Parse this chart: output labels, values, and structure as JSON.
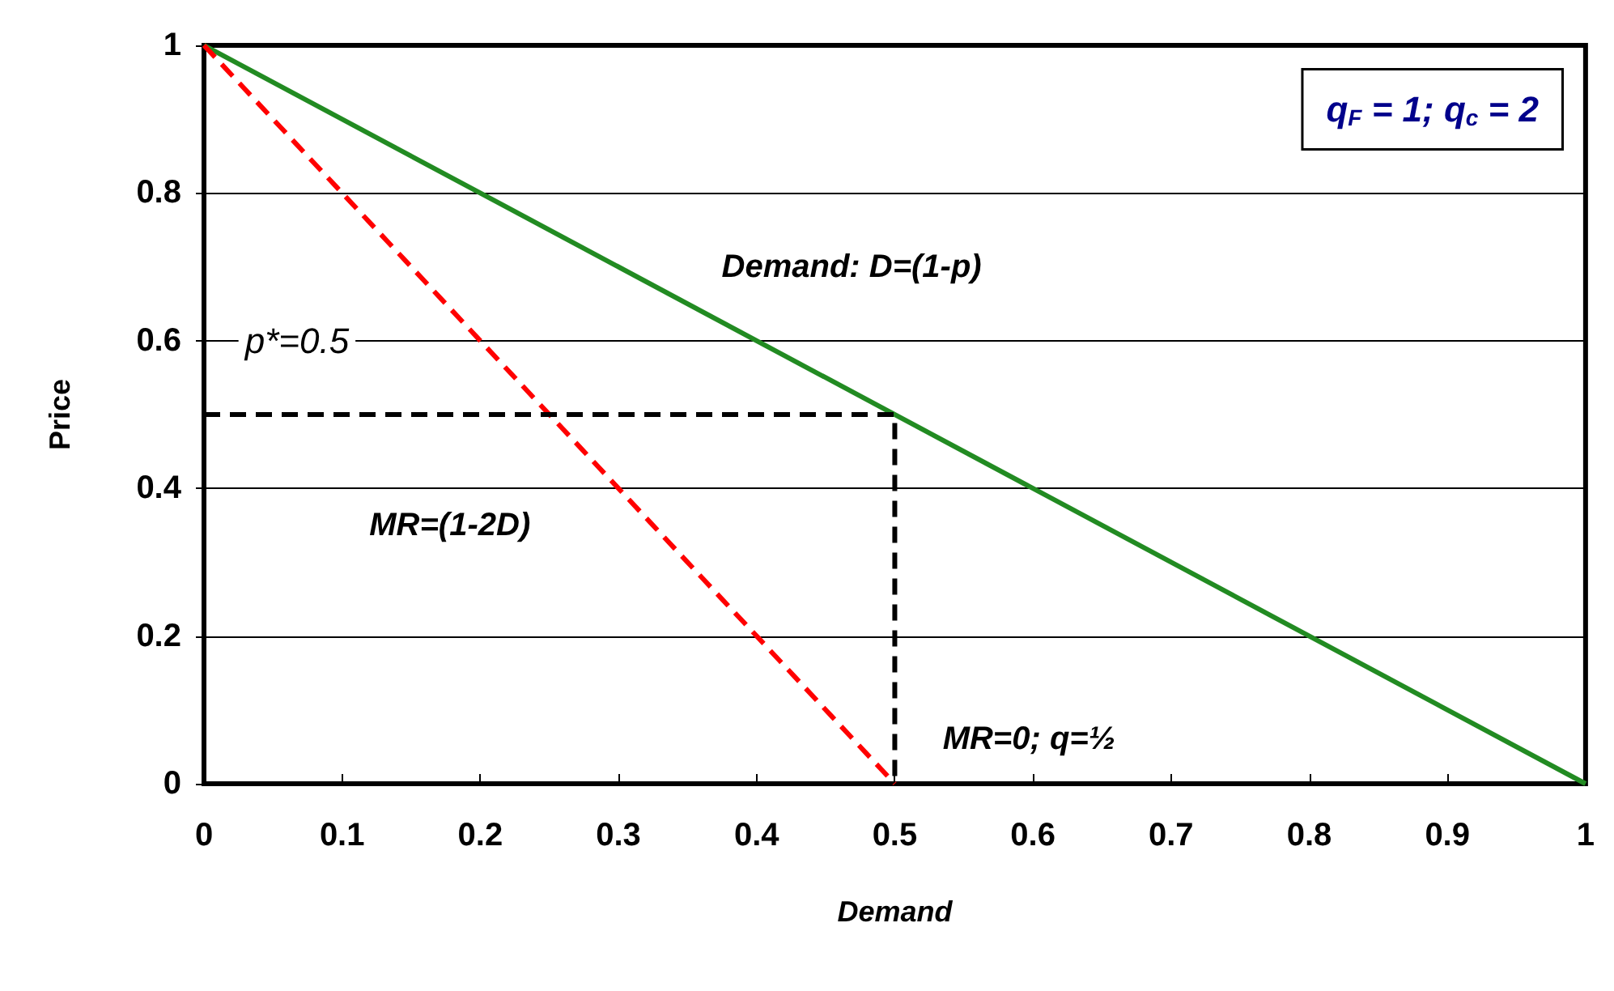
{
  "chart_data": {
    "type": "line",
    "xlabel": "Demand",
    "ylabel": "Price",
    "xlim": [
      0,
      1
    ],
    "ylim": [
      0,
      1
    ],
    "xticks": [
      0,
      0.1,
      0.2,
      0.3,
      0.4,
      0.5,
      0.6,
      0.7,
      0.8,
      0.9,
      1
    ],
    "yticks": [
      0,
      0.2,
      0.4,
      0.6,
      0.8,
      1
    ],
    "grid": "y",
    "series": [
      {
        "color": "#228b22",
        "x": [
          0,
          1
        ],
        "values": [
          1,
          0
        ],
        "line_style": "solid"
      },
      {
        "color": "#ff0000",
        "x": [
          0,
          0.5
        ],
        "values": [
          1,
          0
        ],
        "line_style": "dashed"
      },
      {
        "color": "#000000",
        "x": [
          0,
          0.5,
          0.5
        ],
        "values": [
          0.5,
          0.5,
          0
        ],
        "line_style": "dashed"
      }
    ],
    "annotations": [
      "Demand: D=(1-p)",
      "p*=0.5",
      "MR=(1-2D)",
      "MR=0; q=½",
      "q$_{F}$ = 1; q$_{c}$ = 2"
    ]
  }
}
